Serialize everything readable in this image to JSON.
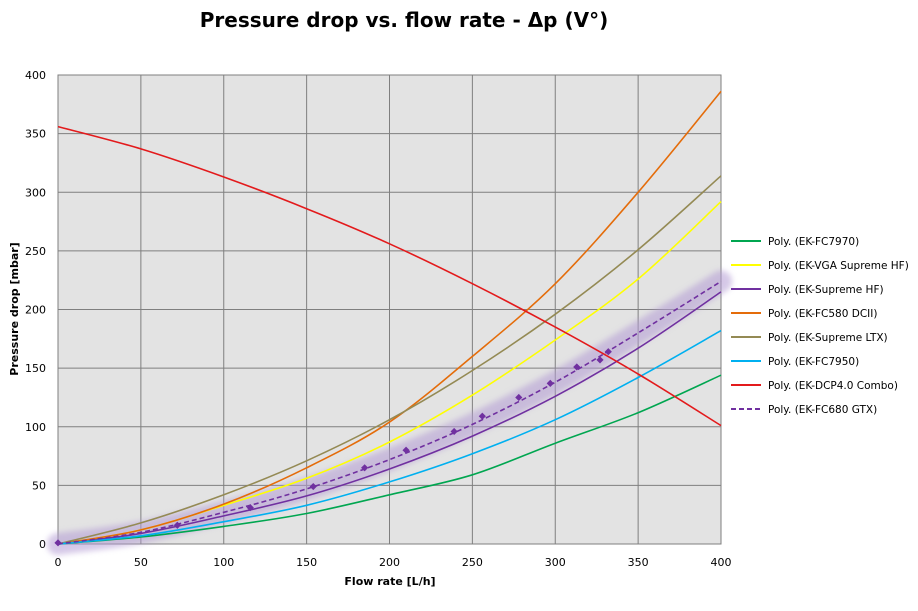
{
  "chart_data": {
    "type": "line",
    "title": "Pressure drop vs. flow rate - Δp (V°)",
    "xlabel": "Flow rate [L/h]",
    "ylabel": "Pressure drop [mbar]",
    "xlim": [
      0,
      400
    ],
    "ylim": [
      0,
      400
    ],
    "x_ticks": [
      "0",
      "50",
      "100",
      "150",
      "200",
      "250",
      "300",
      "350",
      "400"
    ],
    "y_ticks": [
      "0",
      "50",
      "100",
      "150",
      "200",
      "250",
      "300",
      "350",
      "400"
    ],
    "grid": true,
    "legend_position": "right",
    "x": [
      0,
      50,
      100,
      150,
      200,
      250,
      300,
      350,
      400
    ],
    "series": [
      {
        "name": "Poly. (EK-FC7970)",
        "color": "#00a650",
        "style": "solid",
        "values": [
          0,
          6,
          15,
          26,
          42,
          59,
          86,
          112,
          144
        ]
      },
      {
        "name": "Poly. (EK-VGA Supreme HF)",
        "color": "#ffff00",
        "style": "solid",
        "values": [
          0,
          12,
          33,
          56,
          87,
          127,
          174,
          226,
          292
        ]
      },
      {
        "name": "Poly. (EK-Supreme HF)",
        "color": "#7030a0",
        "style": "solid",
        "values": [
          0,
          9,
          24,
          41,
          64,
          92,
          126,
          167,
          215
        ]
      },
      {
        "name": "Poly. (EK-FC580 DCII)",
        "color": "#e46c0a",
        "style": "solid",
        "values": [
          0,
          12,
          34,
          65,
          104,
          160,
          222,
          300,
          386
        ]
      },
      {
        "name": "Poly. (EK-Supreme LTX)",
        "color": "#948a54",
        "style": "solid",
        "values": [
          0,
          18,
          42,
          71,
          106,
          148,
          196,
          251,
          314
        ]
      },
      {
        "name": "Poly. (EK-FC7950)",
        "color": "#00b0f0",
        "style": "solid",
        "values": [
          0,
          7,
          19,
          33,
          53,
          77,
          106,
          142,
          182
        ]
      },
      {
        "name": "Poly. (EK-DCP4.0 Combo)",
        "color": "#e31a1c",
        "style": "solid",
        "values": [
          356,
          337,
          313,
          286,
          256,
          222,
          185,
          145,
          101
        ]
      },
      {
        "name": "Poly. (EK-FC680 GTX)",
        "color": "#7030a0",
        "style": "dashed",
        "values": [
          0,
          10,
          27,
          47,
          72,
          102,
          138,
          180,
          224
        ]
      }
    ],
    "markers": {
      "series": "EK-FC680 GTX",
      "color": "#7030a0",
      "points": [
        [
          0,
          1
        ],
        [
          72,
          16
        ],
        [
          116,
          31
        ],
        [
          154,
          49
        ],
        [
          185,
          65
        ],
        [
          210,
          80
        ],
        [
          239,
          96
        ],
        [
          256,
          109
        ],
        [
          278,
          125
        ],
        [
          297,
          137
        ],
        [
          313,
          151
        ],
        [
          327,
          157
        ],
        [
          332,
          164
        ]
      ]
    }
  }
}
